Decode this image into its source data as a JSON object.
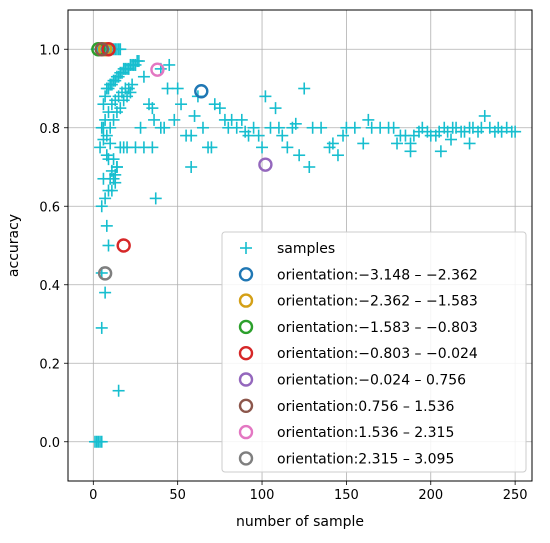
{
  "chart_data": {
    "type": "scatter",
    "title": "",
    "xlabel": "number of sample",
    "ylabel": "accuracy",
    "xlim": [
      -15,
      260
    ],
    "ylim": [
      -0.1,
      1.1
    ],
    "xticks": [
      0,
      50,
      100,
      150,
      200,
      250
    ],
    "yticks": [
      0.0,
      0.2,
      0.4,
      0.6,
      0.8,
      1.0
    ],
    "xtick_labels": [
      "0",
      "50",
      "100",
      "150",
      "200",
      "250"
    ],
    "ytick_labels": [
      "0.0",
      "0.2",
      "0.4",
      "0.6",
      "0.8",
      "1.0"
    ],
    "grid": true,
    "legend_position": "lower-right",
    "samples": {
      "name": "samples",
      "marker": "plus",
      "color": "#17becf",
      "points": [
        [
          1,
          0.0
        ],
        [
          2,
          0.0
        ],
        [
          3,
          0.0
        ],
        [
          4,
          0.0
        ],
        [
          5,
          0.0
        ],
        [
          2,
          1.0
        ],
        [
          3,
          1.0
        ],
        [
          4,
          1.0
        ],
        [
          5,
          1.0
        ],
        [
          6,
          1.0
        ],
        [
          7,
          1.0
        ],
        [
          8,
          1.0
        ],
        [
          9,
          1.0
        ],
        [
          10,
          1.0
        ],
        [
          11,
          1.0
        ],
        [
          12,
          1.0
        ],
        [
          13,
          1.0
        ],
        [
          14,
          1.0
        ],
        [
          15,
          1.0
        ],
        [
          16,
          1.0
        ],
        [
          5,
          0.29
        ],
        [
          7,
          0.38
        ],
        [
          5,
          0.43
        ],
        [
          9,
          0.5
        ],
        [
          5,
          0.6
        ],
        [
          8,
          0.55
        ],
        [
          7,
          0.62
        ],
        [
          9,
          0.64
        ],
        [
          10,
          0.67
        ],
        [
          11,
          0.64
        ],
        [
          12,
          0.67
        ],
        [
          13,
          0.68
        ],
        [
          14,
          0.7
        ],
        [
          6,
          0.67
        ],
        [
          4,
          0.75
        ],
        [
          5,
          0.8
        ],
        [
          6,
          0.77
        ],
        [
          7,
          0.82
        ],
        [
          8,
          0.78
        ],
        [
          9,
          0.84
        ],
        [
          10,
          0.8
        ],
        [
          11,
          0.86
        ],
        [
          12,
          0.82
        ],
        [
          13,
          0.87
        ],
        [
          14,
          0.84
        ],
        [
          15,
          0.88
        ],
        [
          16,
          0.85
        ],
        [
          17,
          0.89
        ],
        [
          18,
          0.87
        ],
        [
          19,
          0.9
        ],
        [
          20,
          0.88
        ],
        [
          21,
          0.9
        ],
        [
          22,
          0.89
        ],
        [
          23,
          0.91
        ],
        [
          6,
          0.86
        ],
        [
          7,
          0.88
        ],
        [
          8,
          0.9
        ],
        [
          9,
          0.9
        ],
        [
          10,
          0.91
        ],
        [
          11,
          0.91
        ],
        [
          12,
          0.92
        ],
        [
          13,
          0.92
        ],
        [
          14,
          0.93
        ],
        [
          15,
          0.93
        ],
        [
          16,
          0.94
        ],
        [
          17,
          0.94
        ],
        [
          18,
          0.95
        ],
        [
          19,
          0.95
        ],
        [
          20,
          0.95
        ],
        [
          21,
          0.95
        ],
        [
          22,
          0.96
        ],
        [
          23,
          0.96
        ],
        [
          24,
          0.96
        ],
        [
          25,
          0.96
        ],
        [
          26,
          0.97
        ],
        [
          27,
          0.97
        ],
        [
          6,
          0.8
        ],
        [
          8,
          0.73
        ],
        [
          10,
          0.76
        ],
        [
          12,
          0.72
        ],
        [
          14,
          0.7
        ],
        [
          16,
          0.75
        ],
        [
          18,
          0.75
        ],
        [
          9,
          0.72
        ],
        [
          11,
          0.69
        ],
        [
          13,
          0.66
        ],
        [
          15,
          0.13
        ],
        [
          20,
          0.75
        ],
        [
          25,
          0.75
        ],
        [
          30,
          0.75
        ],
        [
          35,
          0.75
        ],
        [
          37,
          0.62
        ],
        [
          28,
          0.8
        ],
        [
          30,
          0.93
        ],
        [
          33,
          0.86
        ],
        [
          36,
          0.82
        ],
        [
          40,
          0.8
        ],
        [
          42,
          0.8
        ],
        [
          45,
          0.96
        ],
        [
          48,
          0.82
        ],
        [
          50,
          0.9
        ],
        [
          52,
          0.86
        ],
        [
          55,
          0.78
        ],
        [
          58,
          0.78
        ],
        [
          60,
          0.83
        ],
        [
          62,
          0.88
        ],
        [
          65,
          0.8
        ],
        [
          68,
          0.75
        ],
        [
          70,
          0.75
        ],
        [
          72,
          0.86
        ],
        [
          75,
          0.85
        ],
        [
          78,
          0.82
        ],
        [
          80,
          0.8
        ],
        [
          82,
          0.82
        ],
        [
          85,
          0.8
        ],
        [
          88,
          0.82
        ],
        [
          90,
          0.79
        ],
        [
          92,
          0.78
        ],
        [
          95,
          0.8
        ],
        [
          98,
          0.78
        ],
        [
          100,
          0.75
        ],
        [
          102,
          0.88
        ],
        [
          105,
          0.8
        ],
        [
          108,
          0.85
        ],
        [
          110,
          0.8
        ],
        [
          112,
          0.78
        ],
        [
          115,
          0.75
        ],
        [
          118,
          0.8
        ],
        [
          120,
          0.81
        ],
        [
          122,
          0.73
        ],
        [
          125,
          0.9
        ],
        [
          128,
          0.7
        ],
        [
          130,
          0.8
        ],
        [
          135,
          0.8
        ],
        [
          140,
          0.75
        ],
        [
          142,
          0.76
        ],
        [
          145,
          0.73
        ],
        [
          148,
          0.78
        ],
        [
          150,
          0.8
        ],
        [
          155,
          0.8
        ],
        [
          160,
          0.76
        ],
        [
          163,
          0.82
        ],
        [
          165,
          0.8
        ],
        [
          170,
          0.8
        ],
        [
          175,
          0.8
        ],
        [
          178,
          0.8
        ],
        [
          180,
          0.76
        ],
        [
          182,
          0.78
        ],
        [
          185,
          0.78
        ],
        [
          188,
          0.76
        ],
        [
          190,
          0.78
        ],
        [
          193,
          0.79
        ],
        [
          195,
          0.8
        ],
        [
          198,
          0.79
        ],
        [
          200,
          0.78
        ],
        [
          203,
          0.78
        ],
        [
          205,
          0.79
        ],
        [
          208,
          0.8
        ],
        [
          210,
          0.79
        ],
        [
          213,
          0.8
        ],
        [
          215,
          0.8
        ],
        [
          218,
          0.79
        ],
        [
          220,
          0.79
        ],
        [
          223,
          0.8
        ],
        [
          225,
          0.8
        ],
        [
          228,
          0.79
        ],
        [
          230,
          0.8
        ],
        [
          232,
          0.83
        ],
        [
          235,
          0.8
        ],
        [
          238,
          0.79
        ],
        [
          240,
          0.8
        ],
        [
          242,
          0.79
        ],
        [
          245,
          0.8
        ],
        [
          248,
          0.79
        ],
        [
          250,
          0.79
        ],
        [
          58,
          0.7
        ],
        [
          44,
          0.9
        ],
        [
          40,
          0.95
        ],
        [
          35,
          0.85
        ],
        [
          188,
          0.74
        ],
        [
          206,
          0.74
        ],
        [
          223,
          0.76
        ],
        [
          212,
          0.77
        ]
      ]
    },
    "orientation_series": [
      {
        "name": "orientation:−3.148 – −2.362",
        "color": "#1f77b4",
        "points": [
          [
            64,
            0.893
          ]
        ]
      },
      {
        "name": "orientation:−2.362 – −1.583",
        "color": "#d4a017",
        "points": [
          [
            7,
            1.0
          ]
        ]
      },
      {
        "name": "orientation:−1.583 – −0.803",
        "color": "#2ca02c",
        "points": [
          [
            3,
            1.0
          ]
        ]
      },
      {
        "name": "orientation:−0.803 – −0.024",
        "color": "#d62728",
        "points": [
          [
            18,
            0.5
          ],
          [
            9,
            1.0
          ]
        ]
      },
      {
        "name": "orientation:−0.024 – 0.756",
        "color": "#9467bd",
        "points": [
          [
            102,
            0.706
          ]
        ]
      },
      {
        "name": "orientation:0.756 – 1.536",
        "color": "#8c564b",
        "points": [
          [
            5,
            1.0
          ]
        ]
      },
      {
        "name": "orientation:1.536 – 2.315",
        "color": "#e377c2",
        "points": [
          [
            38,
            0.948
          ]
        ]
      },
      {
        "name": "orientation:2.315 – 3.095",
        "color": "#7f7f7f",
        "points": [
          [
            7,
            0.429
          ]
        ]
      }
    ]
  }
}
